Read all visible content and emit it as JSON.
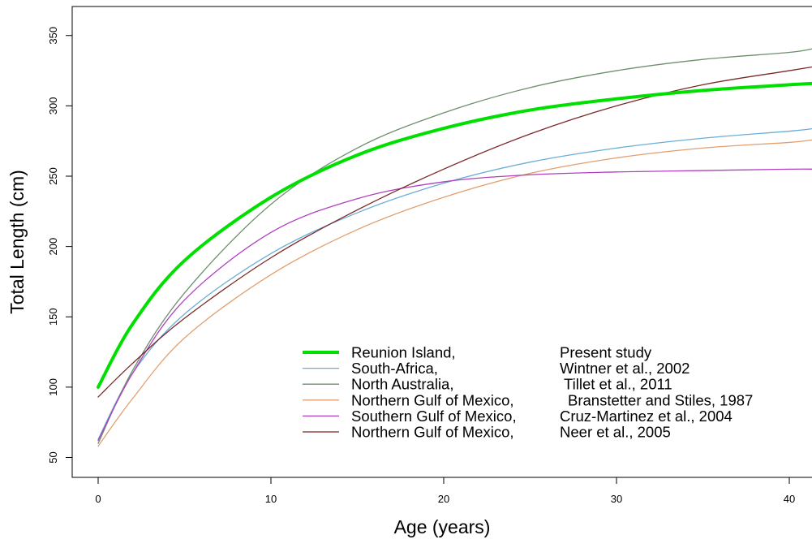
{
  "chart_data": {
    "type": "line",
    "title": "",
    "xlabel": "Age (years)",
    "ylabel": "Total Length (cm)",
    "xlim": [
      0,
      41.5
    ],
    "ylim": [
      50,
      357
    ],
    "x_ticks": [
      0,
      10,
      20,
      30,
      40
    ],
    "y_ticks": [
      50,
      100,
      150,
      200,
      250,
      300,
      350
    ],
    "grid": false,
    "legend_position": "bottom-center",
    "x": [
      0,
      2,
      5,
      10,
      15,
      20,
      25,
      30,
      35,
      40,
      41.5
    ],
    "series": [
      {
        "name": "Reunion Island,",
        "source": "Present study",
        "color": "#00e000",
        "width": 4,
        "values": [
          100,
          145,
          190,
          235,
          265,
          284,
          297,
          305,
          311,
          315,
          316
        ]
      },
      {
        "name": "South-Africa,",
        "source": "Wintner et al., 2002",
        "color": "#6aaed6",
        "width": 1.3,
        "values": [
          63,
          110,
          152,
          195,
          224,
          245,
          260,
          270,
          277,
          282,
          284
        ]
      },
      {
        "name": "North Australia,",
        "source": "Tillet et al., 2011",
        "color": "#6e8f6e",
        "width": 1.3,
        "values": [
          60,
          112,
          167,
          230,
          270,
          295,
          313,
          325,
          333,
          338,
          341
        ]
      },
      {
        "name": "Northern Gulf of Mexico,",
        "source": "Branstetter and Stiles, 1987",
        "color": "#e0a070",
        "width": 1.3,
        "values": [
          58,
          92,
          135,
          180,
          212,
          235,
          252,
          263,
          270,
          274,
          276
        ]
      },
      {
        "name": "Southern Gulf of Mexico,",
        "source": "Cruz-Martinez et al., 2004",
        "color": "#b040c0",
        "width": 1.3,
        "values": [
          62,
          110,
          162,
          210,
          234,
          246,
          251,
          253,
          254,
          255,
          255
        ]
      },
      {
        "name": "Northern Gulf of Mexico,",
        "source": "Neer et al., 2005",
        "color": "#7a2828",
        "width": 1.3,
        "values": [
          93,
          117,
          149,
          192,
          226,
          255,
          280,
          300,
          315,
          325,
          328
        ]
      }
    ]
  }
}
